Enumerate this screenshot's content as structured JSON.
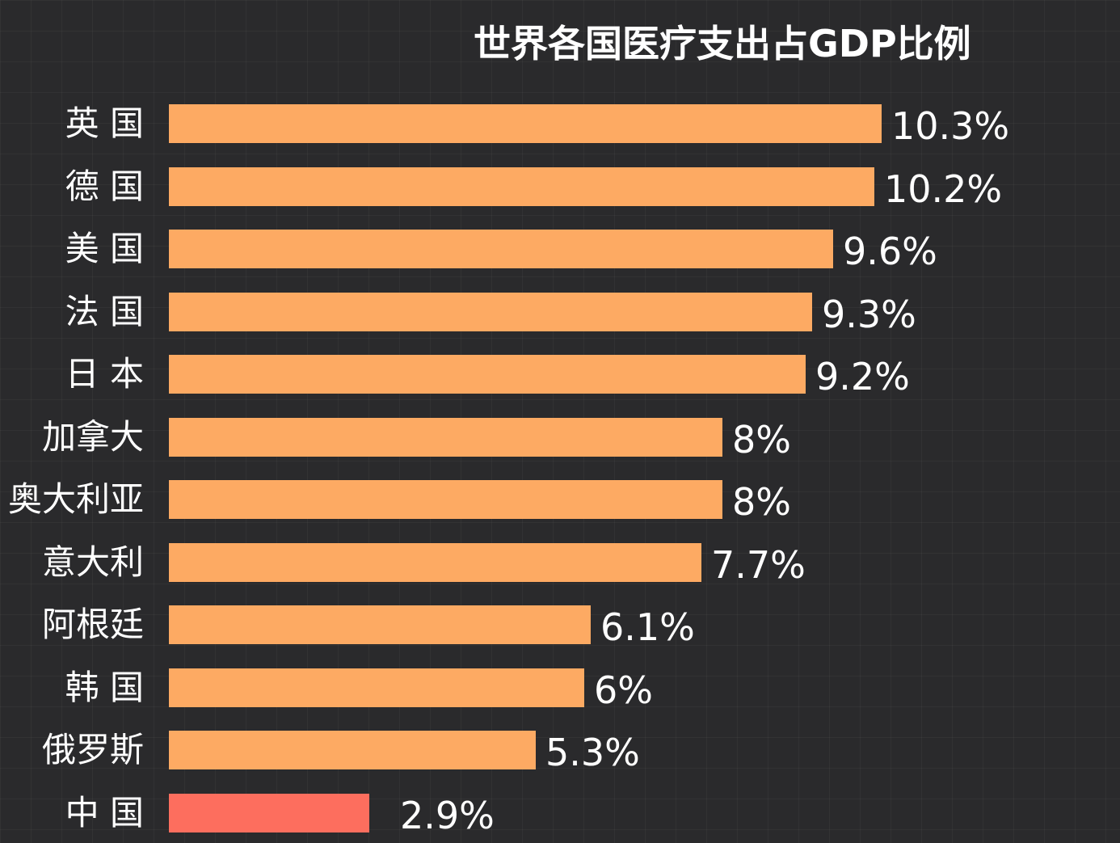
{
  "chart_data": {
    "type": "bar",
    "orientation": "horizontal",
    "title": "世界各国医疗支出占GDP比例",
    "categories": [
      "英 国",
      "德 国",
      "美 国",
      "法 国",
      "日 本",
      "加拿大",
      "奥大利亚",
      "意大利",
      "阿根廷",
      "韩 国",
      "俄罗斯",
      "中 国"
    ],
    "values": [
      10.3,
      10.2,
      9.6,
      9.3,
      9.2,
      8,
      8,
      7.7,
      6.1,
      6,
      5.3,
      2.9
    ],
    "value_labels": [
      "10.3%",
      "10.2%",
      "9.6%",
      "9.3%",
      "9.2%",
      "8%",
      "8%",
      "7.7%",
      "6.1%",
      "6%",
      "5.3%",
      "2.9%"
    ],
    "unit": "%",
    "xlim": [
      0,
      10.3
    ],
    "grid": false,
    "legend": "none",
    "colors": {
      "bar": "#fdaa63",
      "highlight": "#fd6e5e",
      "background": "#2a2a2c",
      "text": "#ffffff"
    },
    "highlight_category": "中 国"
  }
}
